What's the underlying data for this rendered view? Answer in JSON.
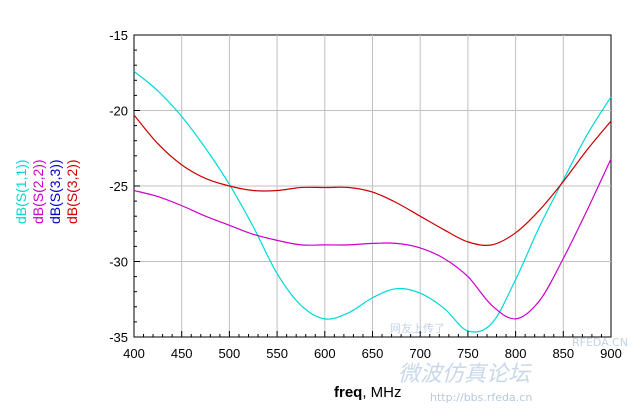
{
  "chart_data": {
    "type": "line",
    "xlabel": "freq, MHz",
    "xlabel_bold": "freq",
    "xlabel_unit": ", MHz",
    "xlim": [
      400,
      900
    ],
    "ylim": [
      -35,
      -15
    ],
    "x_ticks": [
      400,
      450,
      500,
      550,
      600,
      650,
      700,
      750,
      800,
      850,
      900
    ],
    "y_ticks": [
      -35,
      -30,
      -25,
      -20,
      -15
    ],
    "grid": true,
    "legend_placement": "left-vertical",
    "series": [
      {
        "name": "dB(S(1,1))",
        "color": "#00d8d8",
        "x": [
          400,
          425,
          450,
          475,
          500,
          525,
          550,
          575,
          600,
          625,
          650,
          675,
          700,
          725,
          750,
          775,
          800,
          825,
          850,
          875,
          900
        ],
        "y": [
          -17.4,
          -18.7,
          -20.4,
          -22.5,
          -24.9,
          -27.7,
          -30.8,
          -32.9,
          -33.8,
          -33.4,
          -32.4,
          -31.8,
          -32.1,
          -33.1,
          -34.6,
          -34.1,
          -31.2,
          -27.7,
          -24.6,
          -21.6,
          -19.1
        ]
      },
      {
        "name": "dB(S(2,2))",
        "color": "#cc00cc",
        "x": [
          400,
          425,
          450,
          475,
          500,
          525,
          550,
          575,
          600,
          625,
          650,
          675,
          700,
          725,
          750,
          775,
          800,
          825,
          850,
          875,
          900
        ],
        "y": [
          -25.3,
          -25.7,
          -26.3,
          -27.0,
          -27.6,
          -28.2,
          -28.6,
          -28.9,
          -28.9,
          -28.9,
          -28.8,
          -28.8,
          -29.1,
          -29.8,
          -31.0,
          -32.9,
          -33.8,
          -32.6,
          -29.8,
          -26.6,
          -23.2
        ]
      },
      {
        "name": "dB(S(3,3))",
        "color": "#0000cc",
        "x": [],
        "y": []
      },
      {
        "name": "dB(S(3,2))",
        "color": "#cc0000",
        "x": [
          400,
          425,
          450,
          475,
          500,
          525,
          550,
          575,
          600,
          625,
          650,
          675,
          700,
          725,
          750,
          775,
          800,
          825,
          850,
          875,
          900
        ],
        "y": [
          -20.3,
          -22.2,
          -23.6,
          -24.5,
          -25.0,
          -25.3,
          -25.3,
          -25.1,
          -25.1,
          -25.1,
          -25.4,
          -26.1,
          -27.0,
          -27.9,
          -28.7,
          -28.9,
          -28.1,
          -26.6,
          -24.7,
          -22.6,
          -20.7
        ]
      }
    ]
  },
  "watermark": {
    "chinese": "微波仿真论坛",
    "url": "http://bbs.rfeda.cn",
    "site": "RFEDA.CN",
    "partial": "网友上传了"
  }
}
